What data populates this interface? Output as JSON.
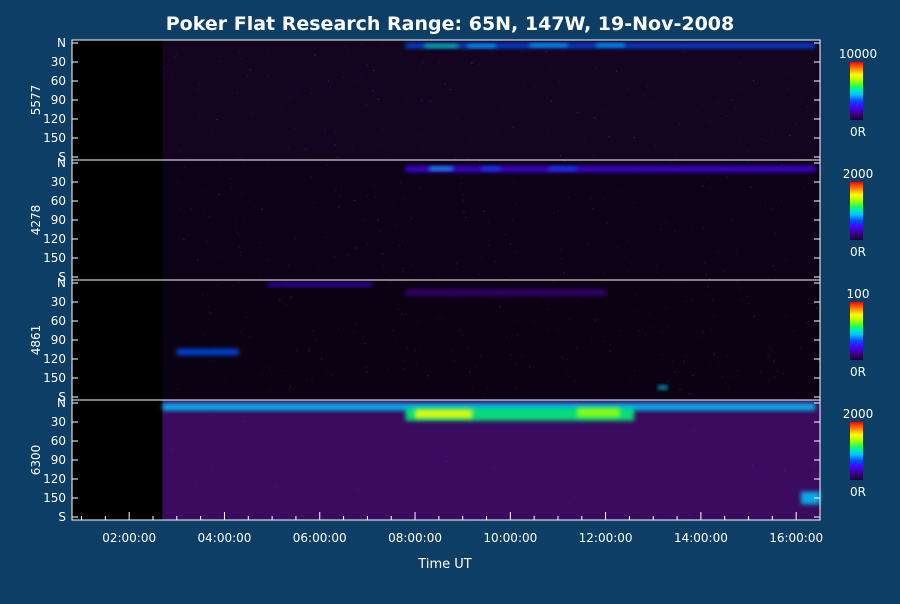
{
  "chart_data": {
    "type": "heatmap",
    "title": "Poker Flat Research Range: 65N, 147W, 19-Nov-2008",
    "xlabel": "Time UT",
    "x_tick_labels": [
      "02:00:00",
      "04:00:00",
      "06:00:00",
      "08:00:00",
      "10:00:00",
      "12:00:00",
      "14:00:00",
      "16:00:00"
    ],
    "x_tick_hours": [
      2,
      4,
      6,
      8,
      10,
      12,
      14,
      16
    ],
    "x_range_hours": [
      0.8,
      16.5
    ],
    "y_tick_labels": [
      "N",
      "30",
      "60",
      "90",
      "120",
      "150",
      "S"
    ],
    "y_tick_values": [
      0,
      30,
      60,
      90,
      120,
      150,
      180
    ],
    "y_range": [
      0,
      180
    ],
    "colorbar_unit_label": "0R",
    "colorscale": [
      "#1a0033",
      "#3b0080",
      "#4a00ff",
      "#0050ff",
      "#00c8ff",
      "#00ff80",
      "#a0ff00",
      "#ffff00",
      "#ff8000",
      "#ff0000"
    ],
    "panels": [
      {
        "wavelength": "5577",
        "colorbar_max": "10000",
        "data_start_hour": 2.7,
        "background": "#15041f",
        "features": [
          {
            "t0": 7.8,
            "t1": 16.4,
            "y0": 0,
            "y1": 8,
            "intensity": 0.35
          },
          {
            "t0": 8.2,
            "t1": 8.9,
            "y0": 2,
            "y1": 7,
            "intensity": 0.5
          },
          {
            "t0": 9.1,
            "t1": 9.7,
            "y0": 2,
            "y1": 7,
            "intensity": 0.45
          },
          {
            "t0": 10.4,
            "t1": 11.2,
            "y0": 1,
            "y1": 6,
            "intensity": 0.45
          },
          {
            "t0": 11.8,
            "t1": 12.4,
            "y0": 1,
            "y1": 6,
            "intensity": 0.4
          }
        ]
      },
      {
        "wavelength": "4278",
        "colorbar_max": "2000",
        "data_start_hour": 2.7,
        "background": "#0c0216",
        "features": [
          {
            "t0": 7.8,
            "t1": 16.4,
            "y0": 5,
            "y1": 14,
            "intensity": 0.2
          },
          {
            "t0": 8.3,
            "t1": 8.8,
            "y0": 6,
            "y1": 12,
            "intensity": 0.4
          },
          {
            "t0": 9.4,
            "t1": 9.8,
            "y0": 6,
            "y1": 12,
            "intensity": 0.3
          },
          {
            "t0": 10.8,
            "t1": 11.4,
            "y0": 6,
            "y1": 12,
            "intensity": 0.3
          }
        ]
      },
      {
        "wavelength": "4861",
        "colorbar_max": "100",
        "data_start_hour": 2.7,
        "background": "#0a0212",
        "features": [
          {
            "t0": 4.9,
            "t1": 7.1,
            "y0": 0,
            "y1": 5,
            "intensity": 0.25
          },
          {
            "t0": 7.8,
            "t1": 12.0,
            "y0": 10,
            "y1": 20,
            "intensity": 0.15
          },
          {
            "t0": 3.0,
            "t1": 4.3,
            "y0": 104,
            "y1": 114,
            "intensity": 0.35
          },
          {
            "t0": 13.1,
            "t1": 13.3,
            "y0": 162,
            "y1": 168,
            "intensity": 0.4
          }
        ]
      },
      {
        "wavelength": "6300",
        "colorbar_max": "2000",
        "data_start_hour": 2.7,
        "background": "#3a0b5e",
        "features": [
          {
            "t0": 2.7,
            "t1": 16.4,
            "y0": 0,
            "y1": 12,
            "intensity": 0.4
          },
          {
            "t0": 7.8,
            "t1": 12.6,
            "y0": 8,
            "y1": 28,
            "intensity": 0.6
          },
          {
            "t0": 8.0,
            "t1": 9.2,
            "y0": 10,
            "y1": 24,
            "intensity": 0.75
          },
          {
            "t0": 11.4,
            "t1": 12.3,
            "y0": 8,
            "y1": 22,
            "intensity": 0.7
          },
          {
            "t0": 16.1,
            "t1": 16.5,
            "y0": 140,
            "y1": 160,
            "intensity": 0.45
          }
        ]
      }
    ]
  }
}
